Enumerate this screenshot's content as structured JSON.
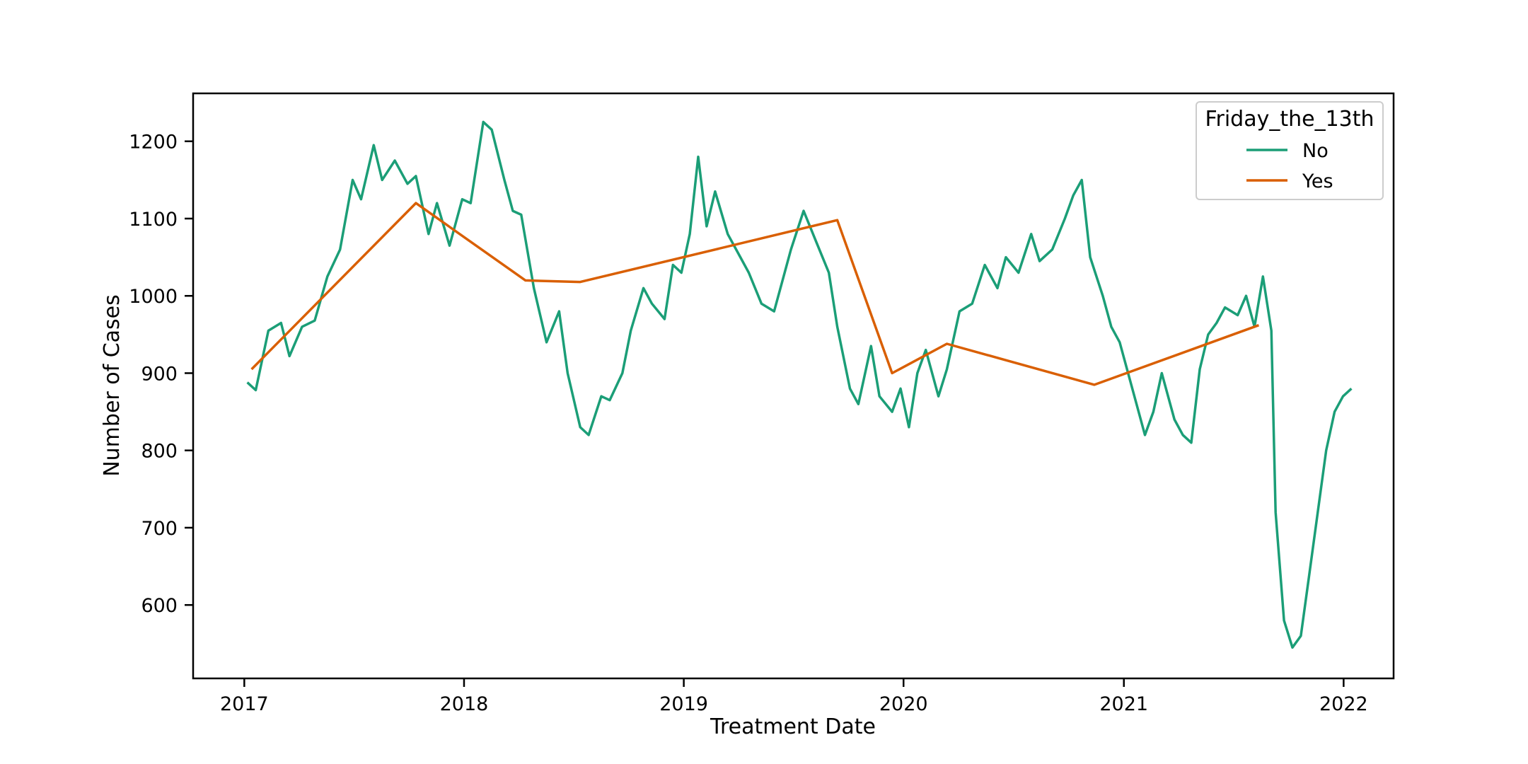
{
  "chart_data": {
    "type": "line",
    "title": "",
    "xlabel": "Treatment Date",
    "ylabel": "Number of Cases",
    "x_ticks": [
      "2017",
      "2018",
      "2019",
      "2020",
      "2021",
      "2022"
    ],
    "y_ticks": [
      600,
      700,
      800,
      900,
      1000,
      1100,
      1200
    ],
    "xlim": [
      "2016-10-08",
      "2022-03-25"
    ],
    "ylim": [
      505,
      1262
    ],
    "grid": false,
    "legend": {
      "title": "Friday_the_13th",
      "placement": "top-right"
    },
    "series": [
      {
        "name": "No",
        "color": "#1b9e77",
        "points": [
          [
            "2017-01-06",
            888
          ],
          [
            "2017-01-20",
            878
          ],
          [
            "2017-02-10",
            955
          ],
          [
            "2017-03-03",
            965
          ],
          [
            "2017-03-17",
            922
          ],
          [
            "2017-04-07",
            960
          ],
          [
            "2017-04-28",
            968
          ],
          [
            "2017-05-19",
            1025
          ],
          [
            "2017-06-09",
            1060
          ],
          [
            "2017-06-30",
            1150
          ],
          [
            "2017-07-14",
            1125
          ],
          [
            "2017-08-04",
            1195
          ],
          [
            "2017-08-18",
            1150
          ],
          [
            "2017-09-08",
            1175
          ],
          [
            "2017-09-29",
            1145
          ],
          [
            "2017-10-13",
            1155
          ],
          [
            "2017-11-03",
            1080
          ],
          [
            "2017-11-17",
            1120
          ],
          [
            "2017-12-08",
            1065
          ],
          [
            "2017-12-29",
            1125
          ],
          [
            "2018-01-12",
            1120
          ],
          [
            "2018-02-02",
            1225
          ],
          [
            "2018-02-16",
            1215
          ],
          [
            "2018-03-09",
            1150
          ],
          [
            "2018-03-23",
            1110
          ],
          [
            "2018-04-06",
            1105
          ],
          [
            "2018-04-27",
            1010
          ],
          [
            "2018-05-18",
            940
          ],
          [
            "2018-06-08",
            980
          ],
          [
            "2018-06-22",
            900
          ],
          [
            "2018-07-13",
            830
          ],
          [
            "2018-07-27",
            820
          ],
          [
            "2018-08-17",
            870
          ],
          [
            "2018-08-31",
            865
          ],
          [
            "2018-09-21",
            900
          ],
          [
            "2018-10-05",
            955
          ],
          [
            "2018-10-26",
            1010
          ],
          [
            "2018-11-09",
            990
          ],
          [
            "2018-11-30",
            970
          ],
          [
            "2018-12-14",
            1040
          ],
          [
            "2018-12-28",
            1030
          ],
          [
            "2019-01-11",
            1080
          ],
          [
            "2019-01-25",
            1180
          ],
          [
            "2019-02-08",
            1090
          ],
          [
            "2019-02-22",
            1135
          ],
          [
            "2019-03-15",
            1080
          ],
          [
            "2019-04-05",
            1050
          ],
          [
            "2019-04-19",
            1030
          ],
          [
            "2019-05-10",
            990
          ],
          [
            "2019-05-31",
            980
          ],
          [
            "2019-06-14",
            1020
          ],
          [
            "2019-06-28",
            1060
          ],
          [
            "2019-07-19",
            1110
          ],
          [
            "2019-08-09",
            1070
          ],
          [
            "2019-08-30",
            1030
          ],
          [
            "2019-09-13",
            960
          ],
          [
            "2019-10-04",
            880
          ],
          [
            "2019-10-18",
            860
          ],
          [
            "2019-11-08",
            935
          ],
          [
            "2019-11-22",
            870
          ],
          [
            "2019-12-13",
            850
          ],
          [
            "2019-12-27",
            880
          ],
          [
            "2020-01-10",
            830
          ],
          [
            "2020-01-24",
            900
          ],
          [
            "2020-02-07",
            930
          ],
          [
            "2020-02-28",
            870
          ],
          [
            "2020-03-13",
            905
          ],
          [
            "2020-04-03",
            980
          ],
          [
            "2020-04-24",
            990
          ],
          [
            "2020-05-15",
            1040
          ],
          [
            "2020-06-05",
            1010
          ],
          [
            "2020-06-19",
            1050
          ],
          [
            "2020-07-10",
            1030
          ],
          [
            "2020-07-31",
            1080
          ],
          [
            "2020-08-14",
            1045
          ],
          [
            "2020-09-04",
            1060
          ],
          [
            "2020-09-25",
            1100
          ],
          [
            "2020-10-09",
            1130
          ],
          [
            "2020-10-23",
            1150
          ],
          [
            "2020-11-06",
            1050
          ],
          [
            "2020-11-27",
            1000
          ],
          [
            "2020-12-11",
            960
          ],
          [
            "2020-12-25",
            940
          ],
          [
            "2021-01-08",
            900
          ],
          [
            "2021-01-22",
            860
          ],
          [
            "2021-02-05",
            820
          ],
          [
            "2021-02-19",
            850
          ],
          [
            "2021-03-05",
            900
          ],
          [
            "2021-03-26",
            840
          ],
          [
            "2021-04-09",
            820
          ],
          [
            "2021-04-23",
            810
          ],
          [
            "2021-05-07",
            905
          ],
          [
            "2021-05-21",
            950
          ],
          [
            "2021-06-04",
            965
          ],
          [
            "2021-06-18",
            985
          ],
          [
            "2021-07-09",
            975
          ],
          [
            "2021-07-23",
            1000
          ],
          [
            "2021-08-06",
            960
          ],
          [
            "2021-08-20",
            1025
          ],
          [
            "2021-09-03",
            955
          ],
          [
            "2021-09-10",
            720
          ],
          [
            "2021-09-24",
            580
          ],
          [
            "2021-10-08",
            545
          ],
          [
            "2021-10-22",
            560
          ],
          [
            "2021-11-05",
            640
          ],
          [
            "2021-11-19",
            720
          ],
          [
            "2021-12-03",
            800
          ],
          [
            "2021-12-17",
            850
          ],
          [
            "2021-12-31",
            870
          ],
          [
            "2022-01-14",
            880
          ]
        ]
      },
      {
        "name": "Yes",
        "color": "#d95f02",
        "points": [
          [
            "2017-01-13",
            905
          ],
          [
            "2017-10-13",
            1120
          ],
          [
            "2018-04-13",
            1020
          ],
          [
            "2018-07-13",
            1018
          ],
          [
            "2019-09-13",
            1098
          ],
          [
            "2019-12-13",
            900
          ],
          [
            "2020-03-13",
            938
          ],
          [
            "2020-11-13",
            885
          ],
          [
            "2021-08-13",
            962
          ]
        ]
      }
    ]
  }
}
